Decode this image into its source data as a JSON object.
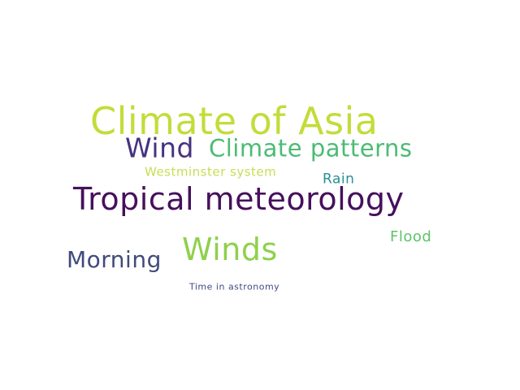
{
  "word_cloud": {
    "words": [
      {
        "id": "climate-of-asia",
        "text": "Climate of Asia",
        "color": "#c3dc3a"
      },
      {
        "id": "wind",
        "text": "Wind",
        "color": "#46337e"
      },
      {
        "id": "climate-patterns",
        "text": "Climate patterns",
        "color": "#4cbb74"
      },
      {
        "id": "westminster",
        "text": "Westminster system",
        "color": "#c8dd54"
      },
      {
        "id": "rain",
        "text": "Rain",
        "color": "#2a8f95"
      },
      {
        "id": "tropical",
        "text": "Tropical meteorology",
        "color": "#46105c"
      },
      {
        "id": "flood",
        "text": "Flood",
        "color": "#5cc36b"
      },
      {
        "id": "winds",
        "text": "Winds",
        "color": "#8ed14c"
      },
      {
        "id": "morning",
        "text": "Morning",
        "color": "#414a7c"
      },
      {
        "id": "time",
        "text": "Time in astronomy",
        "color": "#3f4a84"
      }
    ]
  }
}
